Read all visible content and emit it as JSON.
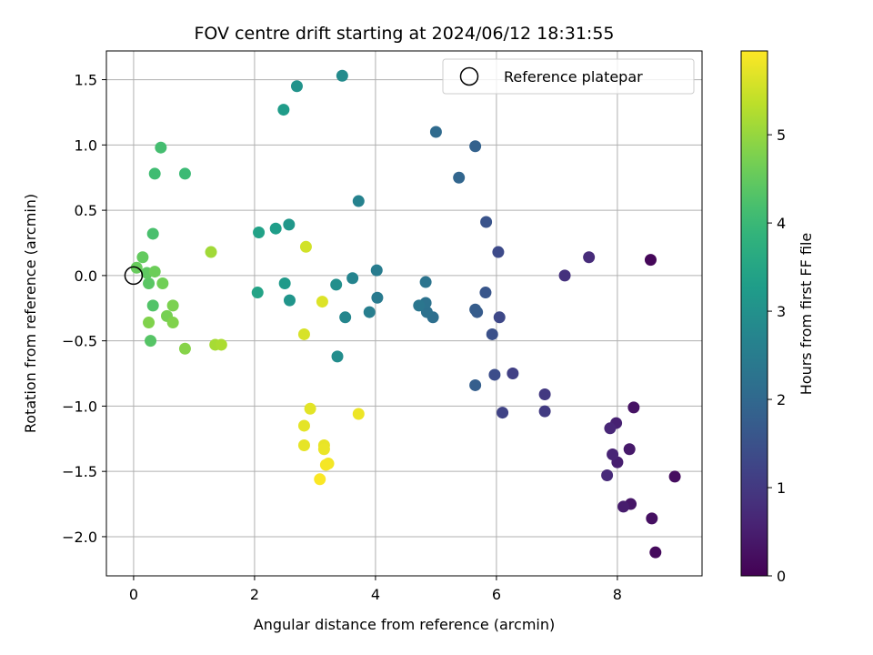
{
  "chart_data": {
    "type": "scatter",
    "title": "FOV centre drift starting at 2024/06/12 18:31:55",
    "xlabel": "Angular distance from reference (arcmin)",
    "ylabel": "Rotation from reference (arcmin)",
    "xlim": [
      -0.45,
      9.4
    ],
    "ylim": [
      -2.3,
      1.72
    ],
    "xticks": [
      0,
      2,
      4,
      6,
      8
    ],
    "xtick_labels": [
      "0",
      "2",
      "4",
      "6",
      "8"
    ],
    "yticks": [
      1.5,
      1.0,
      0.5,
      0.0,
      -0.5,
      -1.0,
      -1.5,
      -2.0
    ],
    "ytick_labels": [
      "1.5",
      "1.0",
      "0.5",
      "0.0",
      "−0.5",
      "−1.0",
      "−1.5",
      "−2.0"
    ],
    "grid": true,
    "legend": {
      "placement": "top-right",
      "entries": [
        "Reference platepar"
      ]
    },
    "reference_point": {
      "x": 0,
      "y": 0
    },
    "colorbar": {
      "label": "Hours from first FF file",
      "range": [
        0,
        5.95
      ],
      "ticks": [
        0,
        1,
        2,
        3,
        4,
        5
      ],
      "tick_labels": [
        "0",
        "1",
        "2",
        "3",
        "4",
        "5"
      ],
      "colormap": "viridis"
    },
    "points": [
      {
        "x": 8.55,
        "y": 0.12,
        "hours": 0.1
      },
      {
        "x": 8.63,
        "y": -2.12,
        "hours": 0.15
      },
      {
        "x": 8.95,
        "y": -1.54,
        "hours": 0.2
      },
      {
        "x": 8.57,
        "y": -1.86,
        "hours": 0.25
      },
      {
        "x": 8.27,
        "y": -1.01,
        "hours": 0.3
      },
      {
        "x": 8.22,
        "y": -1.75,
        "hours": 0.35
      },
      {
        "x": 8.2,
        "y": -1.33,
        "hours": 0.4
      },
      {
        "x": 8.1,
        "y": -1.77,
        "hours": 0.45
      },
      {
        "x": 8.0,
        "y": -1.43,
        "hours": 0.5
      },
      {
        "x": 7.98,
        "y": -1.13,
        "hours": 0.55
      },
      {
        "x": 7.92,
        "y": -1.37,
        "hours": 0.6
      },
      {
        "x": 7.88,
        "y": -1.17,
        "hours": 0.65
      },
      {
        "x": 7.83,
        "y": -1.53,
        "hours": 0.7
      },
      {
        "x": 7.53,
        "y": 0.14,
        "hours": 0.75
      },
      {
        "x": 7.13,
        "y": 0.0,
        "hours": 0.85
      },
      {
        "x": 6.8,
        "y": -0.91,
        "hours": 1.0
      },
      {
        "x": 6.8,
        "y": -1.04,
        "hours": 1.05
      },
      {
        "x": 6.27,
        "y": -0.75,
        "hours": 1.15
      },
      {
        "x": 6.1,
        "y": -1.05,
        "hours": 1.2
      },
      {
        "x": 6.05,
        "y": -0.32,
        "hours": 1.3
      },
      {
        "x": 6.03,
        "y": 0.18,
        "hours": 1.35
      },
      {
        "x": 5.97,
        "y": -0.76,
        "hours": 1.4
      },
      {
        "x": 5.93,
        "y": -0.45,
        "hours": 1.5
      },
      {
        "x": 5.83,
        "y": 0.41,
        "hours": 1.55
      },
      {
        "x": 5.82,
        "y": -0.13,
        "hours": 1.6
      },
      {
        "x": 5.68,
        "y": -0.28,
        "hours": 1.7
      },
      {
        "x": 5.65,
        "y": -0.26,
        "hours": 1.75
      },
      {
        "x": 5.65,
        "y": -0.84,
        "hours": 1.8
      },
      {
        "x": 5.65,
        "y": 0.99,
        "hours": 1.85
      },
      {
        "x": 5.38,
        "y": 0.75,
        "hours": 1.95
      },
      {
        "x": 5.0,
        "y": 1.1,
        "hours": 2.05
      },
      {
        "x": 4.95,
        "y": -0.32,
        "hours": 2.15
      },
      {
        "x": 4.85,
        "y": -0.28,
        "hours": 2.2
      },
      {
        "x": 4.83,
        "y": -0.21,
        "hours": 2.25
      },
      {
        "x": 4.83,
        "y": -0.05,
        "hours": 2.3
      },
      {
        "x": 4.72,
        "y": -0.23,
        "hours": 2.35
      },
      {
        "x": 4.03,
        "y": -0.17,
        "hours": 2.45
      },
      {
        "x": 4.02,
        "y": 0.04,
        "hours": 2.5
      },
      {
        "x": 3.9,
        "y": -0.28,
        "hours": 2.55
      },
      {
        "x": 3.72,
        "y": 0.57,
        "hours": 2.65
      },
      {
        "x": 3.62,
        "y": -0.02,
        "hours": 2.7
      },
      {
        "x": 3.5,
        "y": -0.32,
        "hours": 2.75
      },
      {
        "x": 3.45,
        "y": 1.53,
        "hours": 2.85
      },
      {
        "x": 3.37,
        "y": -0.62,
        "hours": 2.9
      },
      {
        "x": 3.35,
        "y": -0.07,
        "hours": 2.95
      },
      {
        "x": 2.7,
        "y": 1.45,
        "hours": 3.05
      },
      {
        "x": 2.58,
        "y": -0.19,
        "hours": 3.1
      },
      {
        "x": 2.57,
        "y": 0.39,
        "hours": 3.15
      },
      {
        "x": 2.5,
        "y": -0.06,
        "hours": 3.2
      },
      {
        "x": 2.48,
        "y": 1.27,
        "hours": 3.25
      },
      {
        "x": 2.35,
        "y": 0.36,
        "hours": 3.3
      },
      {
        "x": 2.07,
        "y": 0.33,
        "hours": 3.4
      },
      {
        "x": 2.05,
        "y": -0.13,
        "hours": 3.45
      },
      {
        "x": 0.85,
        "y": 0.78,
        "hours": 4.05
      },
      {
        "x": 0.35,
        "y": 0.78,
        "hours": 4.1
      },
      {
        "x": 0.45,
        "y": 0.98,
        "hours": 4.15
      },
      {
        "x": 0.32,
        "y": 0.32,
        "hours": 4.2
      },
      {
        "x": 0.32,
        "y": -0.23,
        "hours": 4.3
      },
      {
        "x": 0.28,
        "y": -0.5,
        "hours": 4.35
      },
      {
        "x": 0.25,
        "y": -0.06,
        "hours": 4.4
      },
      {
        "x": 0.22,
        "y": 0.02,
        "hours": 4.45
      },
      {
        "x": 0.15,
        "y": 0.14,
        "hours": 4.5
      },
      {
        "x": 0.05,
        "y": 0.06,
        "hours": 4.55
      },
      {
        "x": 0.35,
        "y": 0.03,
        "hours": 4.6
      },
      {
        "x": 0.48,
        "y": -0.06,
        "hours": 4.65
      },
      {
        "x": 0.55,
        "y": -0.31,
        "hours": 4.7
      },
      {
        "x": 0.65,
        "y": -0.23,
        "hours": 4.75
      },
      {
        "x": 0.65,
        "y": -0.36,
        "hours": 4.8
      },
      {
        "x": 0.25,
        "y": -0.36,
        "hours": 4.8
      },
      {
        "x": 0.85,
        "y": -0.56,
        "hours": 4.85
      },
      {
        "x": 1.28,
        "y": 0.18,
        "hours": 5.1
      },
      {
        "x": 1.35,
        "y": -0.53,
        "hours": 5.15
      },
      {
        "x": 1.45,
        "y": -0.53,
        "hours": 5.2
      },
      {
        "x": 2.85,
        "y": 0.22,
        "hours": 5.55
      },
      {
        "x": 2.82,
        "y": -0.45,
        "hours": 5.6
      },
      {
        "x": 3.12,
        "y": -0.2,
        "hours": 5.65
      },
      {
        "x": 2.92,
        "y": -1.02,
        "hours": 5.7
      },
      {
        "x": 2.82,
        "y": -1.15,
        "hours": 5.72
      },
      {
        "x": 2.82,
        "y": -1.3,
        "hours": 5.74
      },
      {
        "x": 3.15,
        "y": -1.3,
        "hours": 5.76
      },
      {
        "x": 3.15,
        "y": -1.33,
        "hours": 5.78
      },
      {
        "x": 3.72,
        "y": -1.06,
        "hours": 5.8
      },
      {
        "x": 3.22,
        "y": -1.44,
        "hours": 5.85
      },
      {
        "x": 3.18,
        "y": -1.45,
        "hours": 5.88
      },
      {
        "x": 3.08,
        "y": -1.56,
        "hours": 5.92
      }
    ]
  }
}
